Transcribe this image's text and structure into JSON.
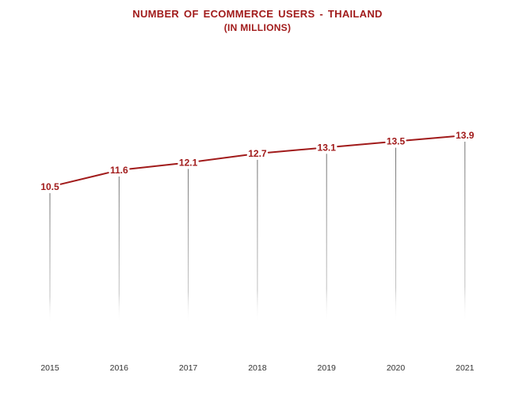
{
  "chart_data": {
    "type": "line",
    "title": "NUMBER OF ECOMMERCE  USERS - THAILAND",
    "subtitle": "(IN MILLIONS)",
    "categories": [
      "2015",
      "2016",
      "2017",
      "2018",
      "2019",
      "2020",
      "2021"
    ],
    "series": [
      {
        "values": [
          10.5,
          11.6,
          12.1,
          12.7,
          13.1,
          13.5,
          13.9
        ]
      }
    ],
    "data_labels": [
      "10.5",
      "11.6",
      "12.1",
      "12.7",
      "13.1",
      "13.5",
      "13.9"
    ],
    "line_color": "#a11b1b",
    "label_color": "#a11b1b",
    "drop_line_color": "#7f7f7f",
    "grid": false,
    "legend": "none",
    "y_axis_visible": false
  }
}
